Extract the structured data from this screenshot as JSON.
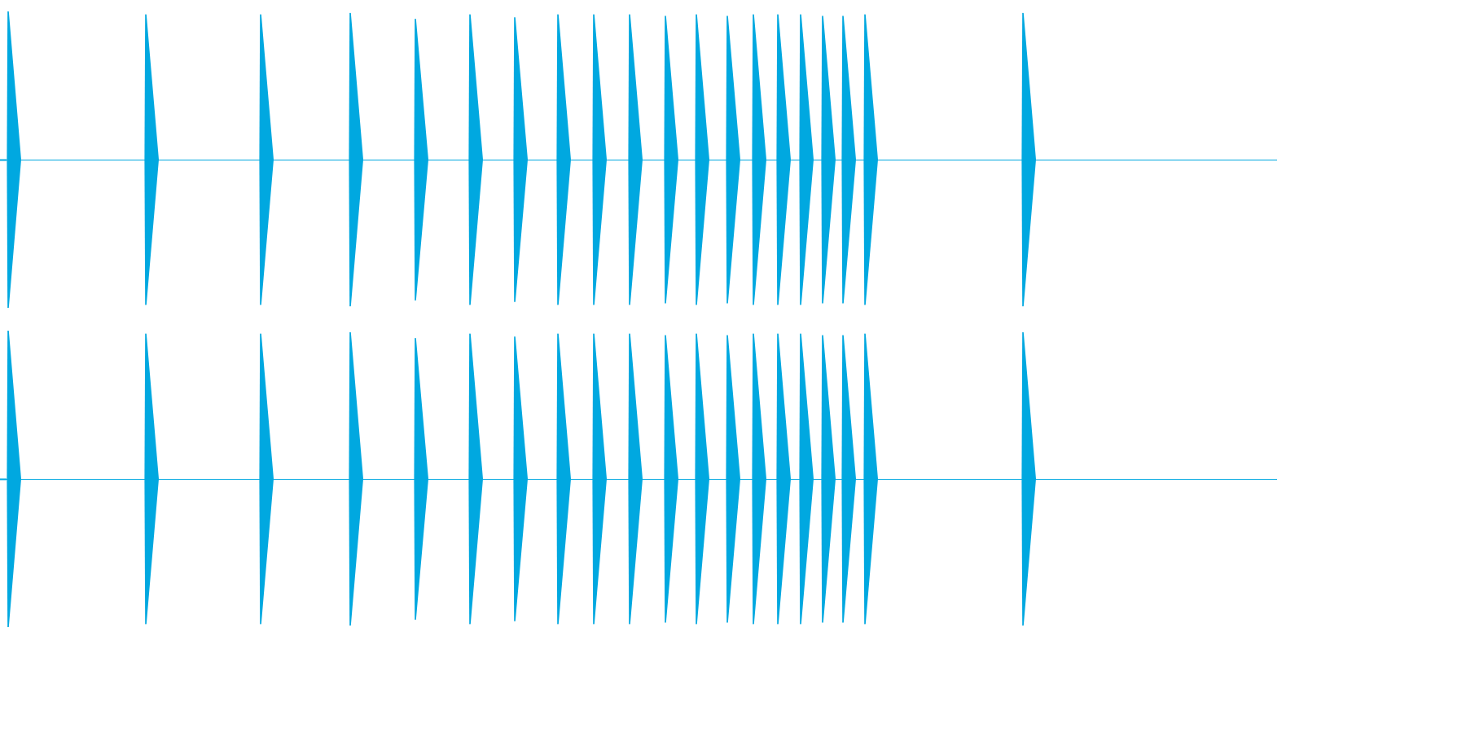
{
  "chart_data": {
    "type": "line",
    "channels": [
      "left",
      "right"
    ],
    "xlim": [
      0,
      1568
    ],
    "ylim": [
      -1,
      1
    ],
    "grid": false,
    "legend": "none",
    "color": "#00a8e0",
    "transients": [
      {
        "t": 10,
        "amp": 1.0
      },
      {
        "t": 179,
        "amp": 0.98
      },
      {
        "t": 320,
        "amp": 0.98
      },
      {
        "t": 430,
        "amp": 0.99
      },
      {
        "t": 510,
        "amp": 0.95
      },
      {
        "t": 577,
        "amp": 0.98
      },
      {
        "t": 632,
        "amp": 0.96
      },
      {
        "t": 685,
        "amp": 0.98
      },
      {
        "t": 729,
        "amp": 0.98
      },
      {
        "t": 773,
        "amp": 0.98
      },
      {
        "t": 817,
        "amp": 0.97
      },
      {
        "t": 855,
        "amp": 0.98
      },
      {
        "t": 893,
        "amp": 0.97
      },
      {
        "t": 925,
        "amp": 0.98
      },
      {
        "t": 955,
        "amp": 0.98
      },
      {
        "t": 983,
        "amp": 0.98
      },
      {
        "t": 1010,
        "amp": 0.97
      },
      {
        "t": 1035,
        "amp": 0.97
      },
      {
        "t": 1062,
        "amp": 0.98
      },
      {
        "t": 1256,
        "amp": 0.99
      }
    ]
  }
}
